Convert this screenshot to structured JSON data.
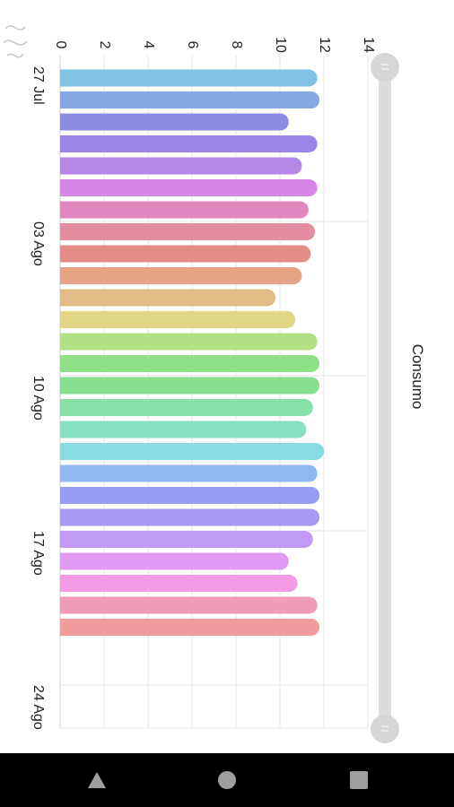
{
  "chart_data": {
    "type": "bar",
    "orientation": "rotated-90",
    "title": "",
    "series_label": "Consumo",
    "ylim": [
      0,
      14
    ],
    "y_ticks": [
      0,
      2,
      4,
      6,
      8,
      10,
      12,
      14
    ],
    "x_tick_labels": [
      "27 Jul",
      "03 Ago",
      "10 Ago",
      "17 Ago",
      "24 Ago"
    ],
    "values": [
      11.7,
      11.8,
      10.4,
      11.7,
      11.0,
      11.7,
      11.3,
      11.6,
      11.4,
      11.0,
      9.8,
      10.7,
      11.7,
      11.8,
      11.8,
      11.5,
      11.2,
      12.0,
      11.7,
      11.8,
      11.8,
      11.5,
      10.4,
      10.8,
      11.7,
      11.8
    ],
    "bar_colors": [
      "#7fc2e4",
      "#86a8e6",
      "#8c8ce2",
      "#9a86e6",
      "#b486e6",
      "#d686e6",
      "#e286c0",
      "#e48ca0",
      "#e68c86",
      "#e6a486",
      "#e2bc86",
      "#e0d686",
      "#b4e086",
      "#90e086",
      "#86e090",
      "#86e0a8",
      "#86e0c4",
      "#86dce0",
      "#90b6f4",
      "#9a9cf4",
      "#a89af4",
      "#c09af4",
      "#e09af4",
      "#f49ae6",
      "#f09cb8",
      "#f09c9c"
    ],
    "grid": true,
    "legend": "none"
  },
  "icons": {
    "back": "back-triangle-icon",
    "home": "home-circle-icon",
    "recents": "recents-square-icon"
  }
}
